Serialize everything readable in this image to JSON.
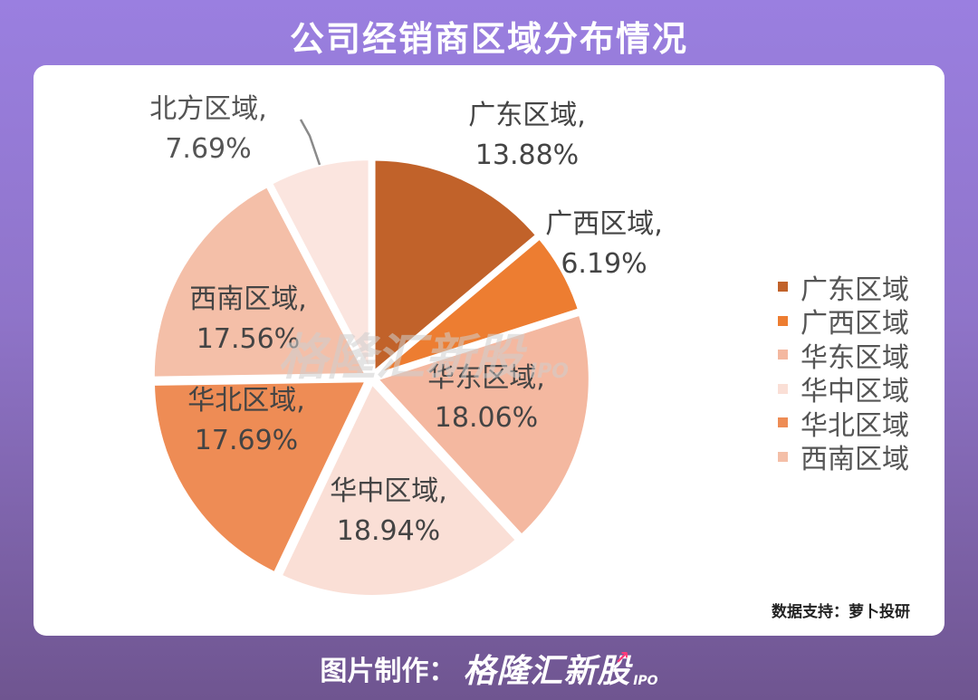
{
  "header": {
    "title": "公司经销商区域分布情况"
  },
  "chart_data": {
    "type": "pie",
    "title": "",
    "unit": "%",
    "slices": [
      {
        "label": "广东区域",
        "value": 13.88,
        "display": "13.88%",
        "color": "#c1622a",
        "label_color": "#444444",
        "legend": true
      },
      {
        "label": "广西区域",
        "value": 6.19,
        "display": "6.19%",
        "color": "#ed7d31",
        "label_color": "#444444",
        "legend": true
      },
      {
        "label": "华东区域",
        "value": 18.06,
        "display": "18.06%",
        "color": "#f4b8a0",
        "label_color": "#444444",
        "legend": true
      },
      {
        "label": "华中区域",
        "value": 18.94,
        "display": "18.94%",
        "color": "#fadfd6",
        "label_color": "#444444",
        "legend": true
      },
      {
        "label": "华北区域",
        "value": 17.69,
        "display": "17.69%",
        "color": "#ee8c55",
        "label_color": "#444444",
        "legend": true
      },
      {
        "label": "西南区域",
        "value": 17.56,
        "display": "17.56%",
        "color": "#f4bfa8",
        "label_color": "#444444",
        "legend": true
      },
      {
        "label": "北方区域",
        "value": 7.69,
        "display": "7.69%",
        "color": "#fbe5df",
        "label_color": "#555555",
        "legend": false
      }
    ],
    "legend": {
      "position": "right",
      "items": [
        "广东区域",
        "广西区域",
        "华东区域",
        "华中区域",
        "华北区域",
        "西南区域"
      ],
      "colors": [
        "#c1622a",
        "#ed7d31",
        "#f4b8a0",
        "#fadfd6",
        "#ee8c55",
        "#f4bfa8"
      ]
    },
    "start_angle_deg": 0,
    "direction": "clockwise"
  },
  "source": "数据支持：萝卜投研",
  "watermark": {
    "text": "格隆汇新股",
    "sub": "IPO"
  },
  "footer": {
    "label": "图片制作：",
    "logo_text": "格隆汇新股",
    "logo_sub": "IPO"
  }
}
